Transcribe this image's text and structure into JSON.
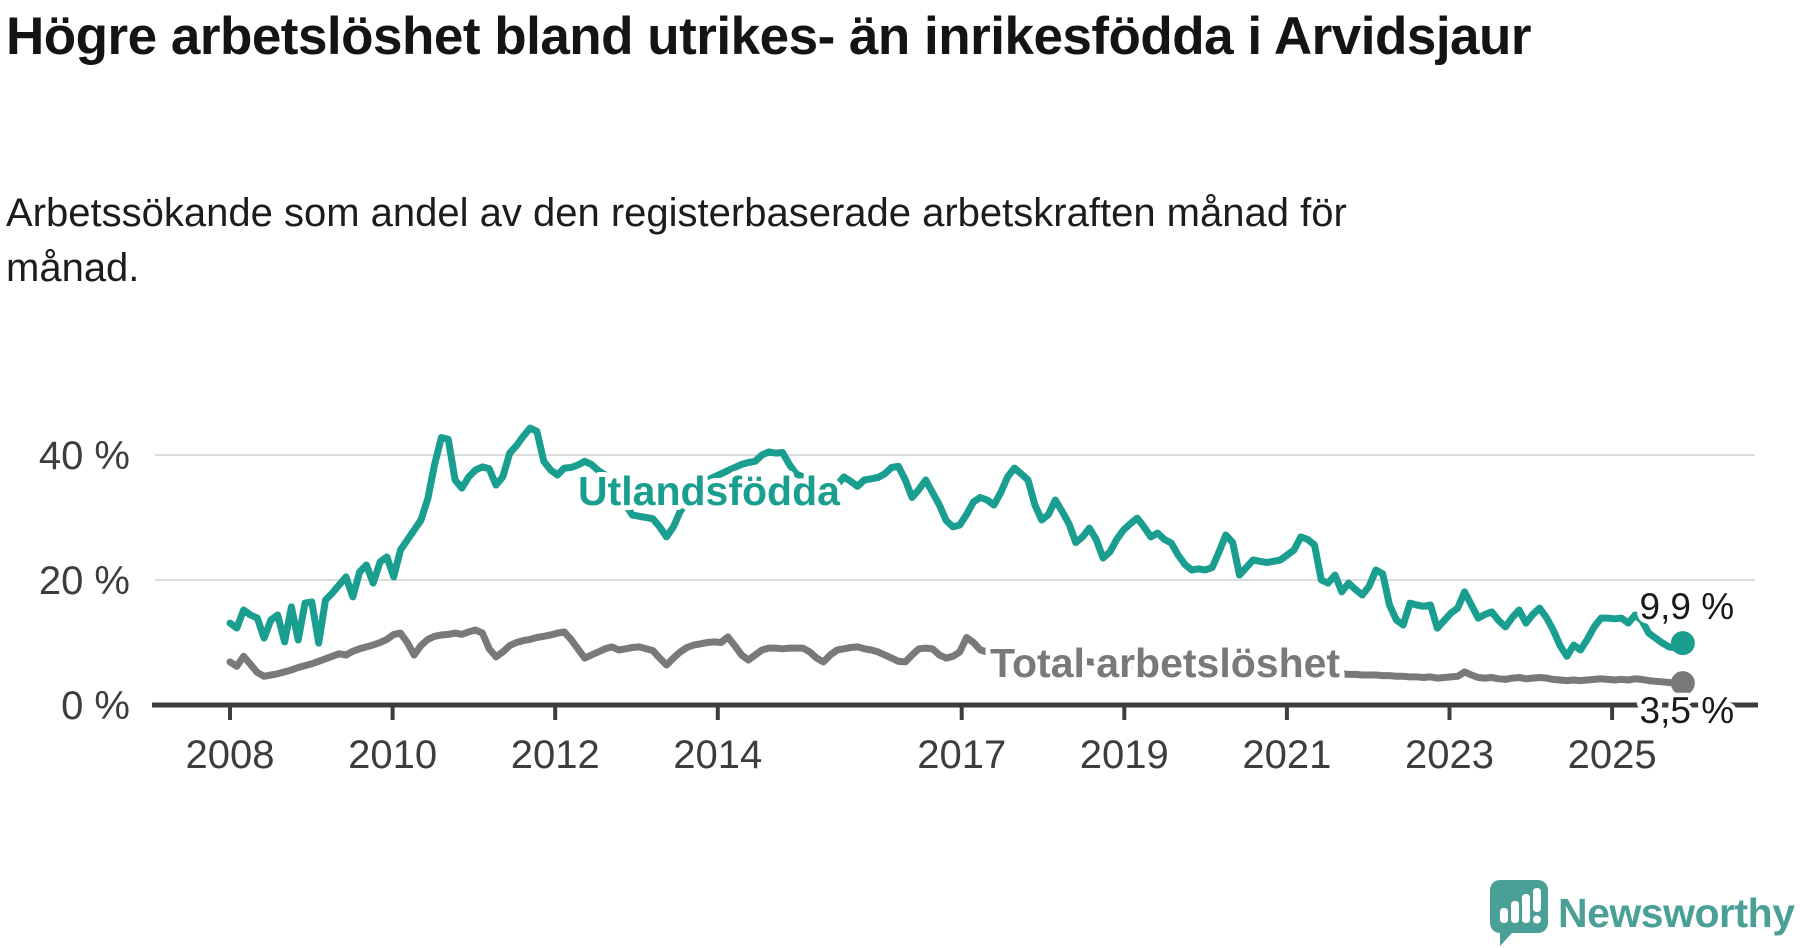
{
  "header": {
    "title": "Högre arbetslöshet bland utrikes- än inrikesfödda i Arvidsjaur",
    "subtitle": "Arbetssökande som andel av den registerbaserade arbetskraften månad för månad."
  },
  "chart_data": {
    "type": "line",
    "title": "",
    "xlabel": "",
    "ylabel": "",
    "x_start": "2008-01",
    "x_end": "2025-10",
    "x_frequency": "monthly",
    "grid": "horizontal-only",
    "x_ticks": [
      {
        "year": 2008,
        "label": "2008"
      },
      {
        "year": 2010,
        "label": "2010"
      },
      {
        "year": 2012,
        "label": "2012"
      },
      {
        "year": 2014,
        "label": "2014"
      },
      {
        "year": 2017,
        "label": "2017"
      },
      {
        "year": 2019,
        "label": "2019"
      },
      {
        "year": 2021,
        "label": "2021"
      },
      {
        "year": 2023,
        "label": "2023"
      },
      {
        "year": 2025,
        "label": "2025"
      }
    ],
    "y_axis": {
      "min": 0,
      "max": 45,
      "gridlines": [
        20,
        40
      ],
      "labels": [
        {
          "value": 40,
          "label": "40 %"
        },
        {
          "value": 20,
          "label": "20 %"
        },
        {
          "value": 0,
          "label": "0 %"
        }
      ]
    },
    "series": [
      {
        "name": "Utlandsfödda",
        "color": "#1a9e8f",
        "end_label": "9,9 %",
        "end_value": 9.9,
        "values": [
          13.1,
          12.3,
          15.2,
          14.4,
          13.9,
          10.7,
          13.6,
          14.4,
          10.1,
          15.7,
          10.4,
          16.3,
          16.5,
          9.9,
          16.8,
          17.9,
          19.2,
          20.5,
          17.3,
          21.3,
          22.4,
          19.5,
          22.9,
          23.7,
          20.5,
          24.8,
          26.4,
          28.0,
          29.6,
          33.0,
          38.5,
          42.8,
          42.5,
          36.0,
          34.7,
          36.5,
          37.6,
          38.1,
          37.8,
          35.2,
          36.5,
          40.3,
          41.5,
          43.0,
          44.3,
          43.8,
          39.0,
          37.6,
          36.8,
          37.9,
          38.0,
          38.4,
          39.0,
          38.5,
          37.5,
          36.8,
          35.5,
          34.0,
          32.0,
          30.4,
          30.2,
          30.0,
          29.8,
          28.5,
          26.9,
          28.5,
          31.0,
          32.5,
          34.0,
          35.0,
          36.0,
          36.5,
          37.0,
          37.5,
          38.0,
          38.5,
          38.8,
          39.0,
          40.0,
          40.5,
          40.3,
          40.4,
          38.5,
          37.0,
          36.5,
          36.0,
          35.5,
          35.0,
          34.9,
          35.2,
          36.5,
          35.8,
          35.0,
          36.0,
          36.2,
          36.4,
          37.0,
          38.0,
          38.2,
          36.0,
          33.2,
          34.5,
          36.0,
          34.0,
          32.0,
          29.5,
          28.5,
          28.8,
          30.5,
          32.5,
          33.2,
          32.8,
          32.0,
          34.0,
          36.5,
          37.9,
          37.0,
          36.0,
          32.0,
          29.6,
          30.5,
          32.8,
          31.0,
          29.0,
          26.0,
          26.9,
          28.3,
          26.5,
          23.5,
          24.5,
          26.5,
          28.0,
          29.0,
          29.9,
          28.5,
          26.9,
          27.5,
          26.5,
          25.9,
          24.0,
          22.5,
          21.6,
          21.8,
          21.6,
          22.0,
          24.5,
          27.2,
          26.0,
          20.8,
          22.0,
          23.2,
          23.0,
          22.8,
          23.0,
          23.2,
          24.0,
          24.8,
          26.9,
          26.5,
          25.6,
          20.0,
          19.5,
          20.8,
          18.1,
          19.5,
          18.5,
          17.6,
          19.0,
          21.6,
          21.0,
          16.0,
          13.6,
          12.8,
          16.3,
          16.0,
          15.8,
          16.0,
          12.3,
          13.5,
          14.7,
          15.5,
          18.1,
          16.0,
          13.9,
          14.5,
          14.9,
          13.5,
          12.5,
          14.0,
          15.2,
          13.1,
          14.5,
          15.5,
          14.0,
          12.0,
          9.5,
          7.8,
          9.6,
          8.8,
          10.5,
          12.5,
          13.9,
          13.9,
          13.8,
          13.9,
          13.1,
          14.4,
          13.5,
          11.5,
          10.7,
          9.9,
          9.3,
          9.1,
          9.9
        ]
      },
      {
        "name": "Total arbetslöshet",
        "color": "#7a787b",
        "end_label": "3,5 %",
        "end_value": 3.5,
        "values": [
          6.9,
          6.2,
          7.8,
          6.5,
          5.2,
          4.6,
          4.8,
          5.0,
          5.3,
          5.6,
          6.0,
          6.3,
          6.6,
          7.0,
          7.4,
          7.8,
          8.2,
          8.0,
          8.6,
          9.0,
          9.3,
          9.6,
          10.0,
          10.5,
          11.3,
          11.5,
          10.0,
          8.0,
          9.5,
          10.5,
          11.0,
          11.2,
          11.3,
          11.5,
          11.3,
          11.7,
          12.0,
          11.5,
          9.0,
          7.7,
          8.5,
          9.5,
          10.0,
          10.3,
          10.5,
          10.8,
          11.0,
          11.2,
          11.5,
          11.7,
          10.5,
          9.0,
          7.5,
          8.0,
          8.5,
          9.0,
          9.3,
          8.8,
          9.0,
          9.2,
          9.3,
          9.0,
          8.7,
          7.5,
          6.4,
          7.5,
          8.5,
          9.2,
          9.6,
          9.8,
          10.0,
          10.1,
          10.0,
          10.9,
          9.5,
          8.0,
          7.2,
          8.0,
          8.8,
          9.1,
          9.1,
          9.0,
          9.1,
          9.1,
          9.1,
          8.5,
          7.5,
          6.9,
          8.0,
          8.8,
          9.0,
          9.2,
          9.3,
          9.0,
          8.8,
          8.5,
          8.0,
          7.5,
          7.0,
          6.9,
          8.0,
          9.0,
          9.1,
          9.0,
          8.0,
          7.5,
          7.8,
          8.5,
          10.8,
          10.0,
          8.8,
          8.5,
          8.3,
          8.5,
          8.8,
          8.3,
          8.1,
          8.0,
          7.8,
          7.7,
          7.6,
          7.5,
          7.4,
          7.2,
          7.1,
          7.0,
          6.9,
          6.8,
          6.7,
          6.6,
          6.5,
          6.4,
          6.4,
          6.3,
          6.2,
          6.1,
          6.0,
          6.0,
          5.9,
          5.8,
          5.8,
          5.7,
          5.7,
          5.6,
          5.6,
          5.7,
          5.9,
          6.1,
          6.2,
          6.2,
          6.1,
          6.0,
          5.9,
          5.8,
          5.7,
          5.6,
          5.6,
          5.5,
          5.4,
          5.3,
          5.2,
          5.1,
          5.0,
          5.0,
          4.9,
          4.9,
          4.8,
          4.8,
          4.8,
          4.7,
          4.7,
          4.6,
          4.6,
          4.5,
          4.5,
          4.4,
          4.5,
          4.3,
          4.4,
          4.5,
          4.6,
          5.3,
          4.8,
          4.4,
          4.3,
          4.4,
          4.2,
          4.1,
          4.3,
          4.4,
          4.2,
          4.3,
          4.4,
          4.3,
          4.1,
          4.0,
          3.9,
          4.0,
          3.9,
          4.0,
          4.1,
          4.2,
          4.1,
          4.0,
          4.1,
          4.0,
          4.2,
          4.1,
          3.9,
          3.8,
          3.7,
          3.6,
          3.5,
          3.5
        ]
      }
    ]
  },
  "footer": {
    "brand": "Newsworthy",
    "brand_color": "#4aa096",
    "logo_icon": "newsworthy-chart-bubble-icon"
  }
}
